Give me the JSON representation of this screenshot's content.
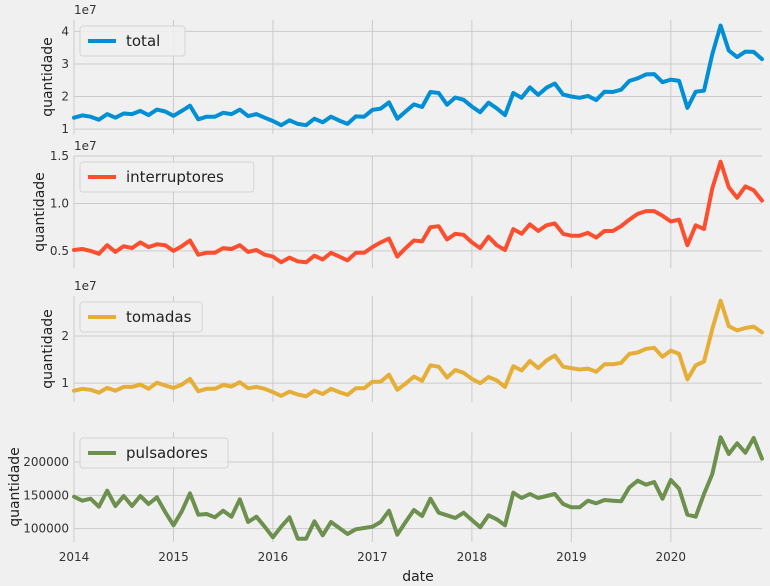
{
  "chart_data": [
    {
      "type": "line",
      "series": [
        {
          "name": "total",
          "color": "#008fd5",
          "values": [
            13.5,
            14.2,
            13.8,
            12.9,
            14.6,
            13.5,
            14.8,
            14.6,
            15.6,
            14.3,
            16.0,
            15.4,
            14.1,
            15.6,
            17.2,
            13.0,
            13.8,
            13.8,
            15.0,
            14.6,
            16.0,
            14.0,
            14.6,
            13.5,
            12.5,
            11.2,
            12.7,
            11.6,
            11.2,
            13.2,
            12.1,
            13.8,
            12.6,
            11.6,
            13.9,
            13.8,
            15.9,
            16.3,
            18.2,
            13.2,
            15.4,
            17.6,
            16.8,
            21.4,
            21.1,
            17.5,
            19.7,
            19.0,
            16.9,
            15.2,
            18.1,
            16.4,
            14.3,
            21.1,
            19.6,
            22.8,
            20.5,
            22.7,
            24.0,
            20.6,
            20.0,
            19.6,
            20.2,
            18.9,
            21.5,
            21.4,
            22.1,
            24.8,
            25.6,
            26.8,
            26.9,
            24.4,
            25.2,
            24.8,
            16.5,
            21.5,
            21.8,
            33.0,
            41.8,
            34.1,
            32.1,
            33.8,
            33.7,
            31.5
          ]
        }
      ],
      "x": {
        "start": "2014-01",
        "end": "2020-12",
        "ticks": [
          "2014",
          "2015",
          "2016",
          "2017",
          "2018",
          "2019",
          "2020"
        ],
        "label": ""
      },
      "ylabel": "quantidade",
      "scale_label": "1e7",
      "value_unit": "1e6",
      "ylim": [
        8.5,
        43.5
      ],
      "yticks": [
        {
          "v": 10,
          "label": "1"
        },
        {
          "v": 20,
          "label": "2"
        },
        {
          "v": 30,
          "label": "3"
        },
        {
          "v": 40,
          "label": "4"
        }
      ],
      "legend": "top-left",
      "grid": true
    },
    {
      "type": "line",
      "series": [
        {
          "name": "interruptores",
          "color": "#fc4f30",
          "values": [
            5.1,
            5.2,
            5.0,
            4.7,
            5.6,
            4.9,
            5.5,
            5.3,
            5.9,
            5.4,
            5.7,
            5.6,
            5.0,
            5.5,
            6.1,
            4.6,
            4.8,
            4.8,
            5.3,
            5.2,
            5.6,
            4.9,
            5.1,
            4.6,
            4.4,
            3.8,
            4.3,
            3.9,
            3.8,
            4.5,
            4.1,
            4.8,
            4.4,
            4.0,
            4.8,
            4.8,
            5.4,
            5.9,
            6.3,
            4.4,
            5.3,
            6.1,
            6.0,
            7.5,
            7.6,
            6.2,
            6.8,
            6.7,
            5.9,
            5.3,
            6.5,
            5.6,
            5.1,
            7.3,
            6.8,
            7.8,
            7.1,
            7.7,
            7.9,
            6.8,
            6.6,
            6.6,
            6.9,
            6.4,
            7.1,
            7.1,
            7.6,
            8.3,
            8.9,
            9.2,
            9.2,
            8.7,
            8.1,
            8.3,
            5.6,
            7.7,
            7.3,
            11.6,
            14.4,
            11.7,
            10.6,
            11.8,
            11.4,
            10.3
          ]
        }
      ],
      "x": {
        "start": "2014-01",
        "end": "2020-12",
        "ticks": [
          "2014",
          "2015",
          "2016",
          "2017",
          "2018",
          "2019",
          "2020"
        ],
        "label": ""
      },
      "ylabel": "quantidade",
      "scale_label": "1e7",
      "value_unit": "1e6",
      "ylim": [
        3.2,
        15.0
      ],
      "yticks": [
        {
          "v": 5,
          "label": "0.5"
        },
        {
          "v": 10,
          "label": "1.0"
        },
        {
          "v": 15,
          "label": "1.5"
        }
      ],
      "legend": "top-left",
      "grid": true
    },
    {
      "type": "line",
      "series": [
        {
          "name": "tomadas",
          "color": "#e5ae38",
          "values": [
            8.4,
            8.8,
            8.6,
            8.0,
            9.0,
            8.4,
            9.2,
            9.2,
            9.7,
            8.8,
            10.1,
            9.5,
            9.0,
            9.7,
            10.9,
            8.3,
            8.8,
            8.8,
            9.6,
            9.3,
            10.2,
            8.9,
            9.2,
            8.8,
            8.1,
            7.3,
            8.2,
            7.6,
            7.2,
            8.4,
            7.7,
            8.8,
            8.1,
            7.5,
            8.9,
            8.9,
            10.3,
            10.3,
            11.8,
            8.6,
            9.9,
            11.4,
            10.5,
            13.8,
            13.5,
            11.2,
            12.8,
            12.2,
            10.9,
            10.0,
            11.3,
            10.6,
            9.2,
            13.6,
            12.7,
            14.7,
            13.2,
            14.8,
            15.9,
            13.5,
            13.2,
            12.9,
            13.1,
            12.4,
            14.0,
            14.0,
            14.3,
            16.2,
            16.5,
            17.3,
            17.5,
            15.6,
            16.9,
            16.2,
            10.8,
            13.8,
            14.6,
            21.5,
            27.5,
            22.1,
            21.2,
            21.7,
            22.0,
            20.8
          ]
        }
      ],
      "x": {
        "start": "2014-01",
        "end": "2020-12",
        "ticks": [
          "2014",
          "2015",
          "2016",
          "2017",
          "2018",
          "2019",
          "2020"
        ],
        "label": ""
      },
      "ylabel": "quantidade",
      "scale_label": "1e7",
      "value_unit": "1e6",
      "ylim": [
        6.0,
        28.5
      ],
      "yticks": [
        {
          "v": 10,
          "label": "1"
        },
        {
          "v": 20,
          "label": "2"
        }
      ],
      "legend": "top-left",
      "grid": true
    },
    {
      "type": "line",
      "series": [
        {
          "name": "pulsadores",
          "color": "#6d904f",
          "values": [
            148,
            142,
            145,
            133,
            157,
            134,
            149,
            134,
            149,
            137,
            147,
            125,
            105,
            126,
            153,
            121,
            122,
            117,
            127,
            118,
            144,
            110,
            118,
            103,
            87,
            103,
            117,
            85,
            85,
            111,
            90,
            110,
            101,
            92,
            99,
            101,
            103,
            110,
            127,
            91,
            110,
            128,
            119,
            145,
            124,
            120,
            116,
            124,
            113,
            102,
            120,
            114,
            105,
            154,
            146,
            152,
            146,
            149,
            152,
            137,
            132,
            132,
            142,
            138,
            143,
            142,
            141,
            162,
            172,
            166,
            170,
            145,
            173,
            160,
            121,
            118,
            152,
            182,
            237,
            212,
            228,
            214,
            236,
            205
          ]
        }
      ],
      "x": {
        "start": "2014-01",
        "end": "2020-12",
        "ticks": [
          "2014",
          "2015",
          "2016",
          "2017",
          "2018",
          "2019",
          "2020"
        ],
        "label": "date"
      },
      "ylabel": "quantidade",
      "value_unit": "1e3",
      "ylim": [
        80,
        245
      ],
      "yticks": [
        {
          "v": 100,
          "label": "100000"
        },
        {
          "v": 150,
          "label": "150000"
        },
        {
          "v": 200,
          "label": "200000"
        }
      ],
      "legend": "top-left",
      "grid": true
    }
  ]
}
